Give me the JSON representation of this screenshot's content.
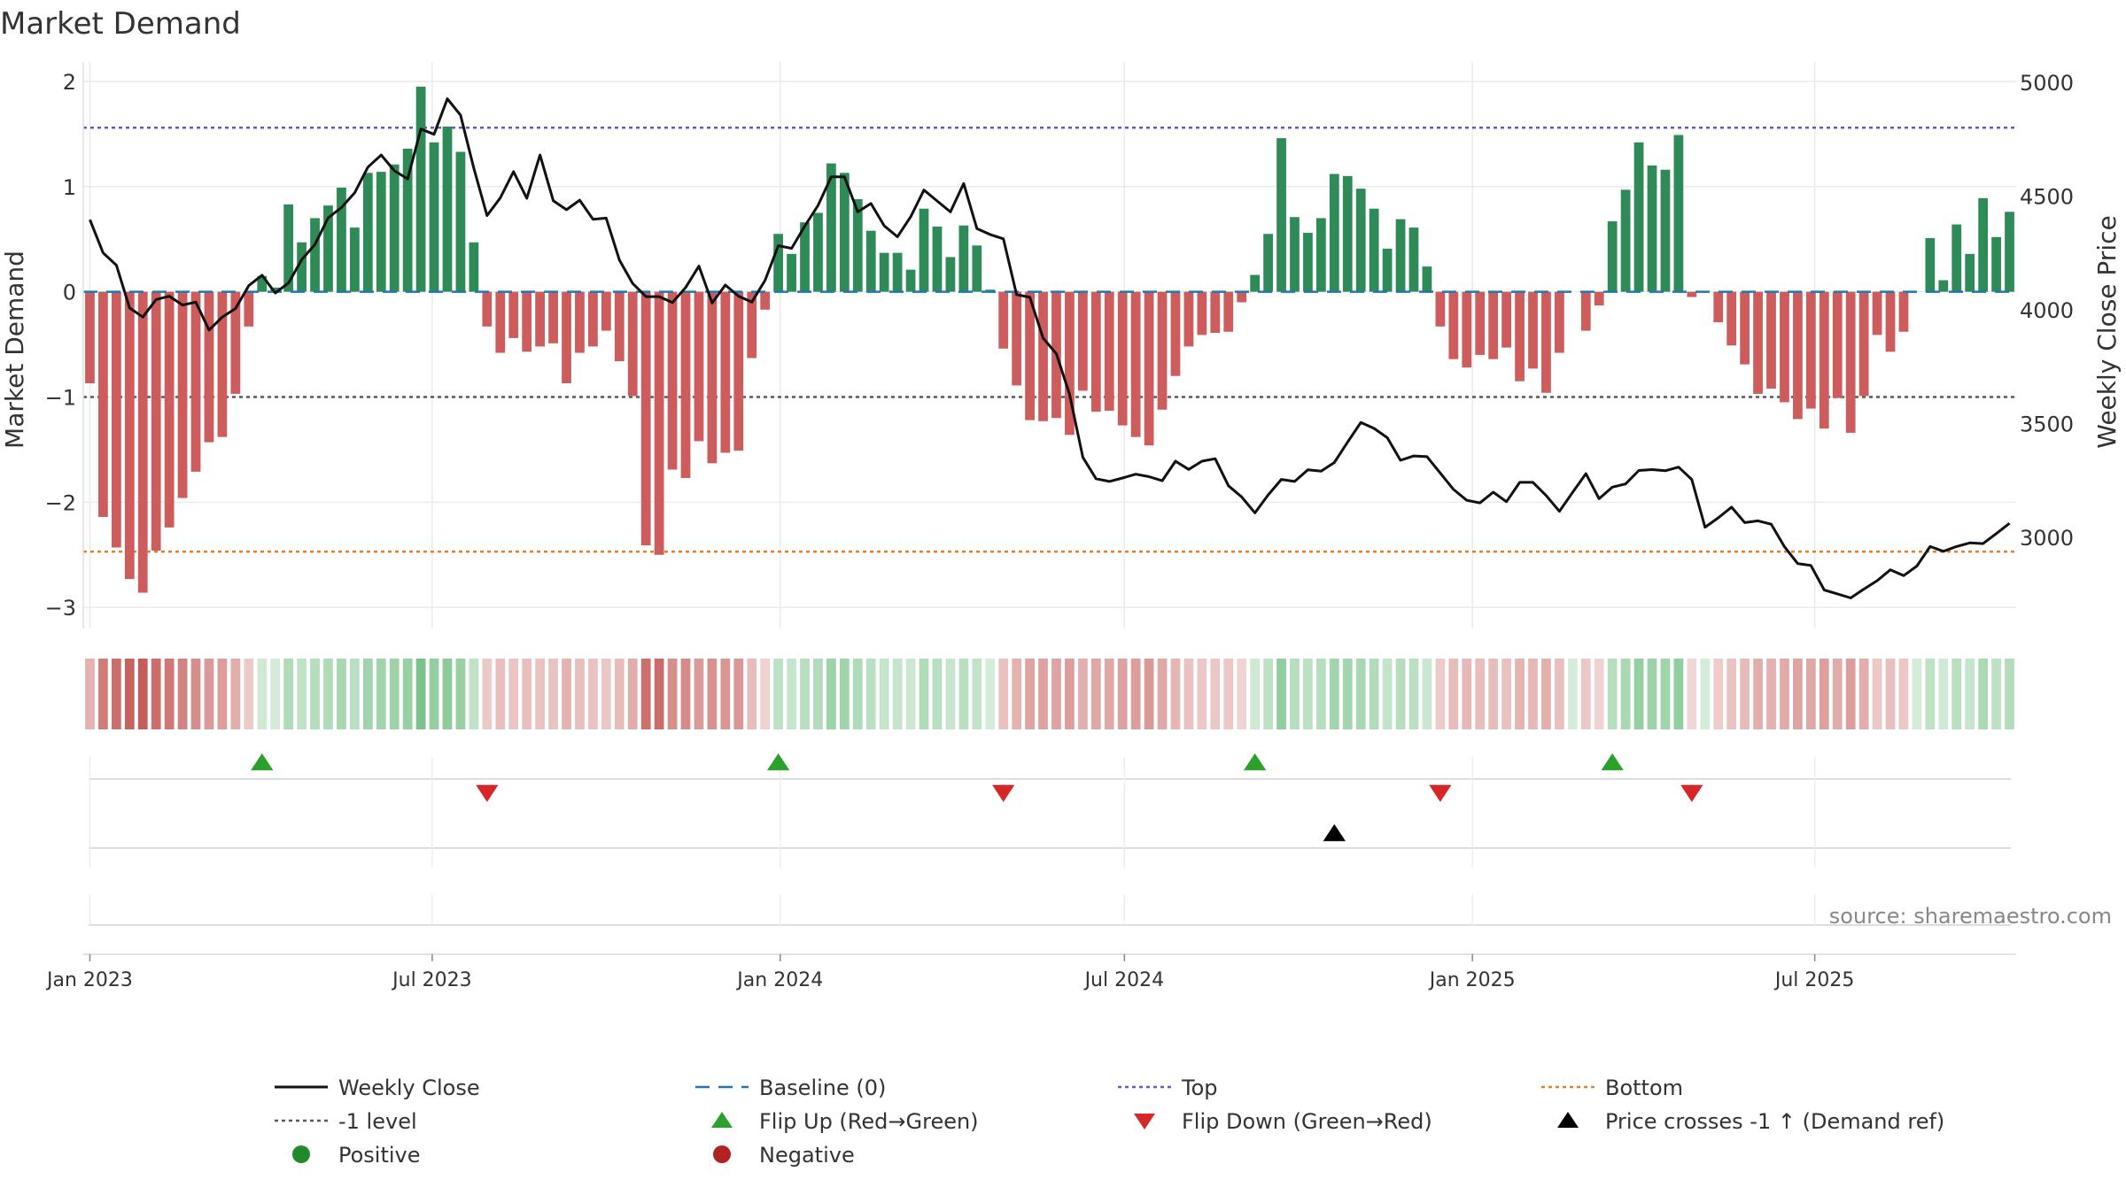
{
  "chart_data": {
    "type": "bar",
    "title": "Market Demand",
    "ylabel_left": "Market Demand",
    "ylabel_right": "Weekly Close Price",
    "source": "source: sharemaestro.com",
    "x_start": "2023-01-01",
    "week_days": 7,
    "x_ticks": [
      {
        "label": "Jan 2023",
        "date": "2023-01-01"
      },
      {
        "label": "Jul 2023",
        "date": "2023-07-01"
      },
      {
        "label": "Jan 2024",
        "date": "2024-01-01"
      },
      {
        "label": "Jul 2024",
        "date": "2024-07-01"
      },
      {
        "label": "Jan 2025",
        "date": "2025-01-01"
      },
      {
        "label": "Jul 2025",
        "date": "2025-07-01"
      }
    ],
    "y_left_range": [
      -3.2,
      2.1
    ],
    "y_left_ticks": [
      {
        "value": 2,
        "label": "2"
      },
      {
        "value": 1,
        "label": "1"
      },
      {
        "value": 0,
        "label": "0"
      },
      {
        "value": -1,
        "label": "−1"
      },
      {
        "value": -2,
        "label": "−2"
      },
      {
        "value": -3,
        "label": "−3"
      }
    ],
    "y_right_range": [
      2600,
      5050
    ],
    "y_right_ticks": [
      {
        "value": 5000,
        "label": "5000"
      },
      {
        "value": 4500,
        "label": "4500"
      },
      {
        "value": 4000,
        "label": "4000"
      },
      {
        "value": 3500,
        "label": "3500"
      },
      {
        "value": 3000,
        "label": "3000"
      }
    ],
    "ref_lines": {
      "top": 1.56,
      "minus_one": -1.0,
      "bottom": -2.47,
      "baseline": 0
    },
    "demand": [
      -0.87,
      -2.14,
      -2.43,
      -2.73,
      -2.86,
      -2.46,
      -2.24,
      -1.96,
      -1.71,
      -1.43,
      -1.38,
      -0.97,
      -0.33,
      0.15,
      0.04,
      0.83,
      0.47,
      0.7,
      0.82,
      0.99,
      0.61,
      1.13,
      1.14,
      1.21,
      1.36,
      1.95,
      1.42,
      1.57,
      1.33,
      0.47,
      -0.33,
      -0.58,
      -0.44,
      -0.57,
      -0.52,
      -0.49,
      -0.87,
      -0.58,
      -0.52,
      -0.37,
      -0.66,
      -0.99,
      -2.41,
      -2.5,
      -1.69,
      -1.77,
      -1.42,
      -1.63,
      -1.53,
      -1.51,
      -0.63,
      -0.17,
      0.55,
      0.36,
      0.66,
      0.75,
      1.22,
      1.13,
      0.88,
      0.58,
      0.37,
      0.37,
      0.21,
      0.79,
      0.62,
      0.33,
      0.63,
      0.44,
      0.02,
      -0.54,
      -0.89,
      -1.22,
      -1.23,
      -1.2,
      -1.36,
      -0.94,
      -1.14,
      -1.13,
      -1.27,
      -1.38,
      -1.46,
      -1.12,
      -0.8,
      -0.52,
      -0.41,
      -0.39,
      -0.38,
      -0.1,
      0.16,
      0.55,
      1.46,
      0.71,
      0.56,
      0.7,
      1.12,
      1.1,
      0.98,
      0.79,
      0.41,
      0.69,
      0.61,
      0.24,
      -0.33,
      -0.64,
      -0.72,
      -0.6,
      -0.64,
      -0.53,
      -0.85,
      -0.73,
      -0.96,
      -0.58,
      0.0,
      -0.37,
      -0.13,
      0.67,
      0.97,
      1.42,
      1.2,
      1.16,
      1.49,
      -0.05,
      0.0,
      -0.29,
      -0.51,
      -0.69,
      -0.97,
      -0.92,
      -1.05,
      -1.21,
      -1.11,
      -1.3,
      -1.01,
      -1.34,
      -0.99,
      -0.41,
      -0.57,
      -0.38,
      0.0,
      0.51,
      0.11,
      0.64,
      0.36,
      0.89,
      0.52,
      0.76
    ],
    "close": [
      4396,
      4250,
      4196,
      4008,
      3968,
      4045,
      4060,
      4021,
      4034,
      3911,
      3968,
      4006,
      4106,
      4152,
      4074,
      4118,
      4220,
      4287,
      4404,
      4449,
      4514,
      4627,
      4680,
      4611,
      4575,
      4794,
      4771,
      4927,
      4855,
      4622,
      4414,
      4492,
      4607,
      4490,
      4680,
      4479,
      4440,
      4482,
      4398,
      4403,
      4218,
      4116,
      4058,
      4058,
      4032,
      4098,
      4192,
      4030,
      4109,
      4060,
      4034,
      4130,
      4282,
      4270,
      4368,
      4459,
      4584,
      4584,
      4430,
      4467,
      4369,
      4321,
      4409,
      4526,
      4478,
      4430,
      4555,
      4357,
      4331,
      4312,
      4067,
      4055,
      3876,
      3807,
      3629,
      3352,
      3258,
      3246,
      3261,
      3278,
      3267,
      3249,
      3335,
      3299,
      3335,
      3346,
      3227,
      3178,
      3108,
      3187,
      3255,
      3246,
      3297,
      3291,
      3329,
      3419,
      3505,
      3479,
      3438,
      3339,
      3358,
      3355,
      3283,
      3211,
      3163,
      3152,
      3199,
      3157,
      3242,
      3242,
      3184,
      3115,
      3198,
      3280,
      3170,
      3221,
      3235,
      3294,
      3298,
      3293,
      3309,
      3255,
      3045,
      3086,
      3133,
      3065,
      3073,
      3058,
      2959,
      2885,
      2877,
      2769,
      2752,
      2734,
      2773,
      2810,
      2858,
      2832,
      2874,
      2960,
      2939,
      2960,
      2976,
      2973,
      3017,
      3062
    ]
  },
  "legend": [
    {
      "label": "Weekly Close",
      "icon": "line-black"
    },
    {
      "label": "Baseline (0)",
      "icon": "dash-blue"
    },
    {
      "label": "Top",
      "icon": "dot-purple"
    },
    {
      "label": "Bottom",
      "icon": "dot-orange"
    },
    {
      "label": "-1 level",
      "icon": "dot-gray"
    },
    {
      "label": "Flip Up (Red→Green)",
      "icon": "triangle-up-green"
    },
    {
      "label": "Flip Down (Green→Red)",
      "icon": "triangle-down-red"
    },
    {
      "label": "Price crosses -1 ↑ (Demand ref)",
      "icon": "triangle-up-black"
    },
    {
      "label": "Positive",
      "icon": "circle-green"
    },
    {
      "label": "Negative",
      "icon": "circle-red"
    }
  ],
  "colors": {
    "positive": "#2e8b57",
    "negative": "#cd5c5c",
    "close_line": "#111111",
    "baseline": "#1f77b4",
    "top": "#5b5bd6",
    "bottom": "#e8812a",
    "minus_one": "#555b66",
    "flip_up": "#2ca02c",
    "flip_down": "#d62728",
    "cross": "#000000",
    "legend_positive": "#1f8b2a",
    "legend_negative": "#b22222"
  }
}
